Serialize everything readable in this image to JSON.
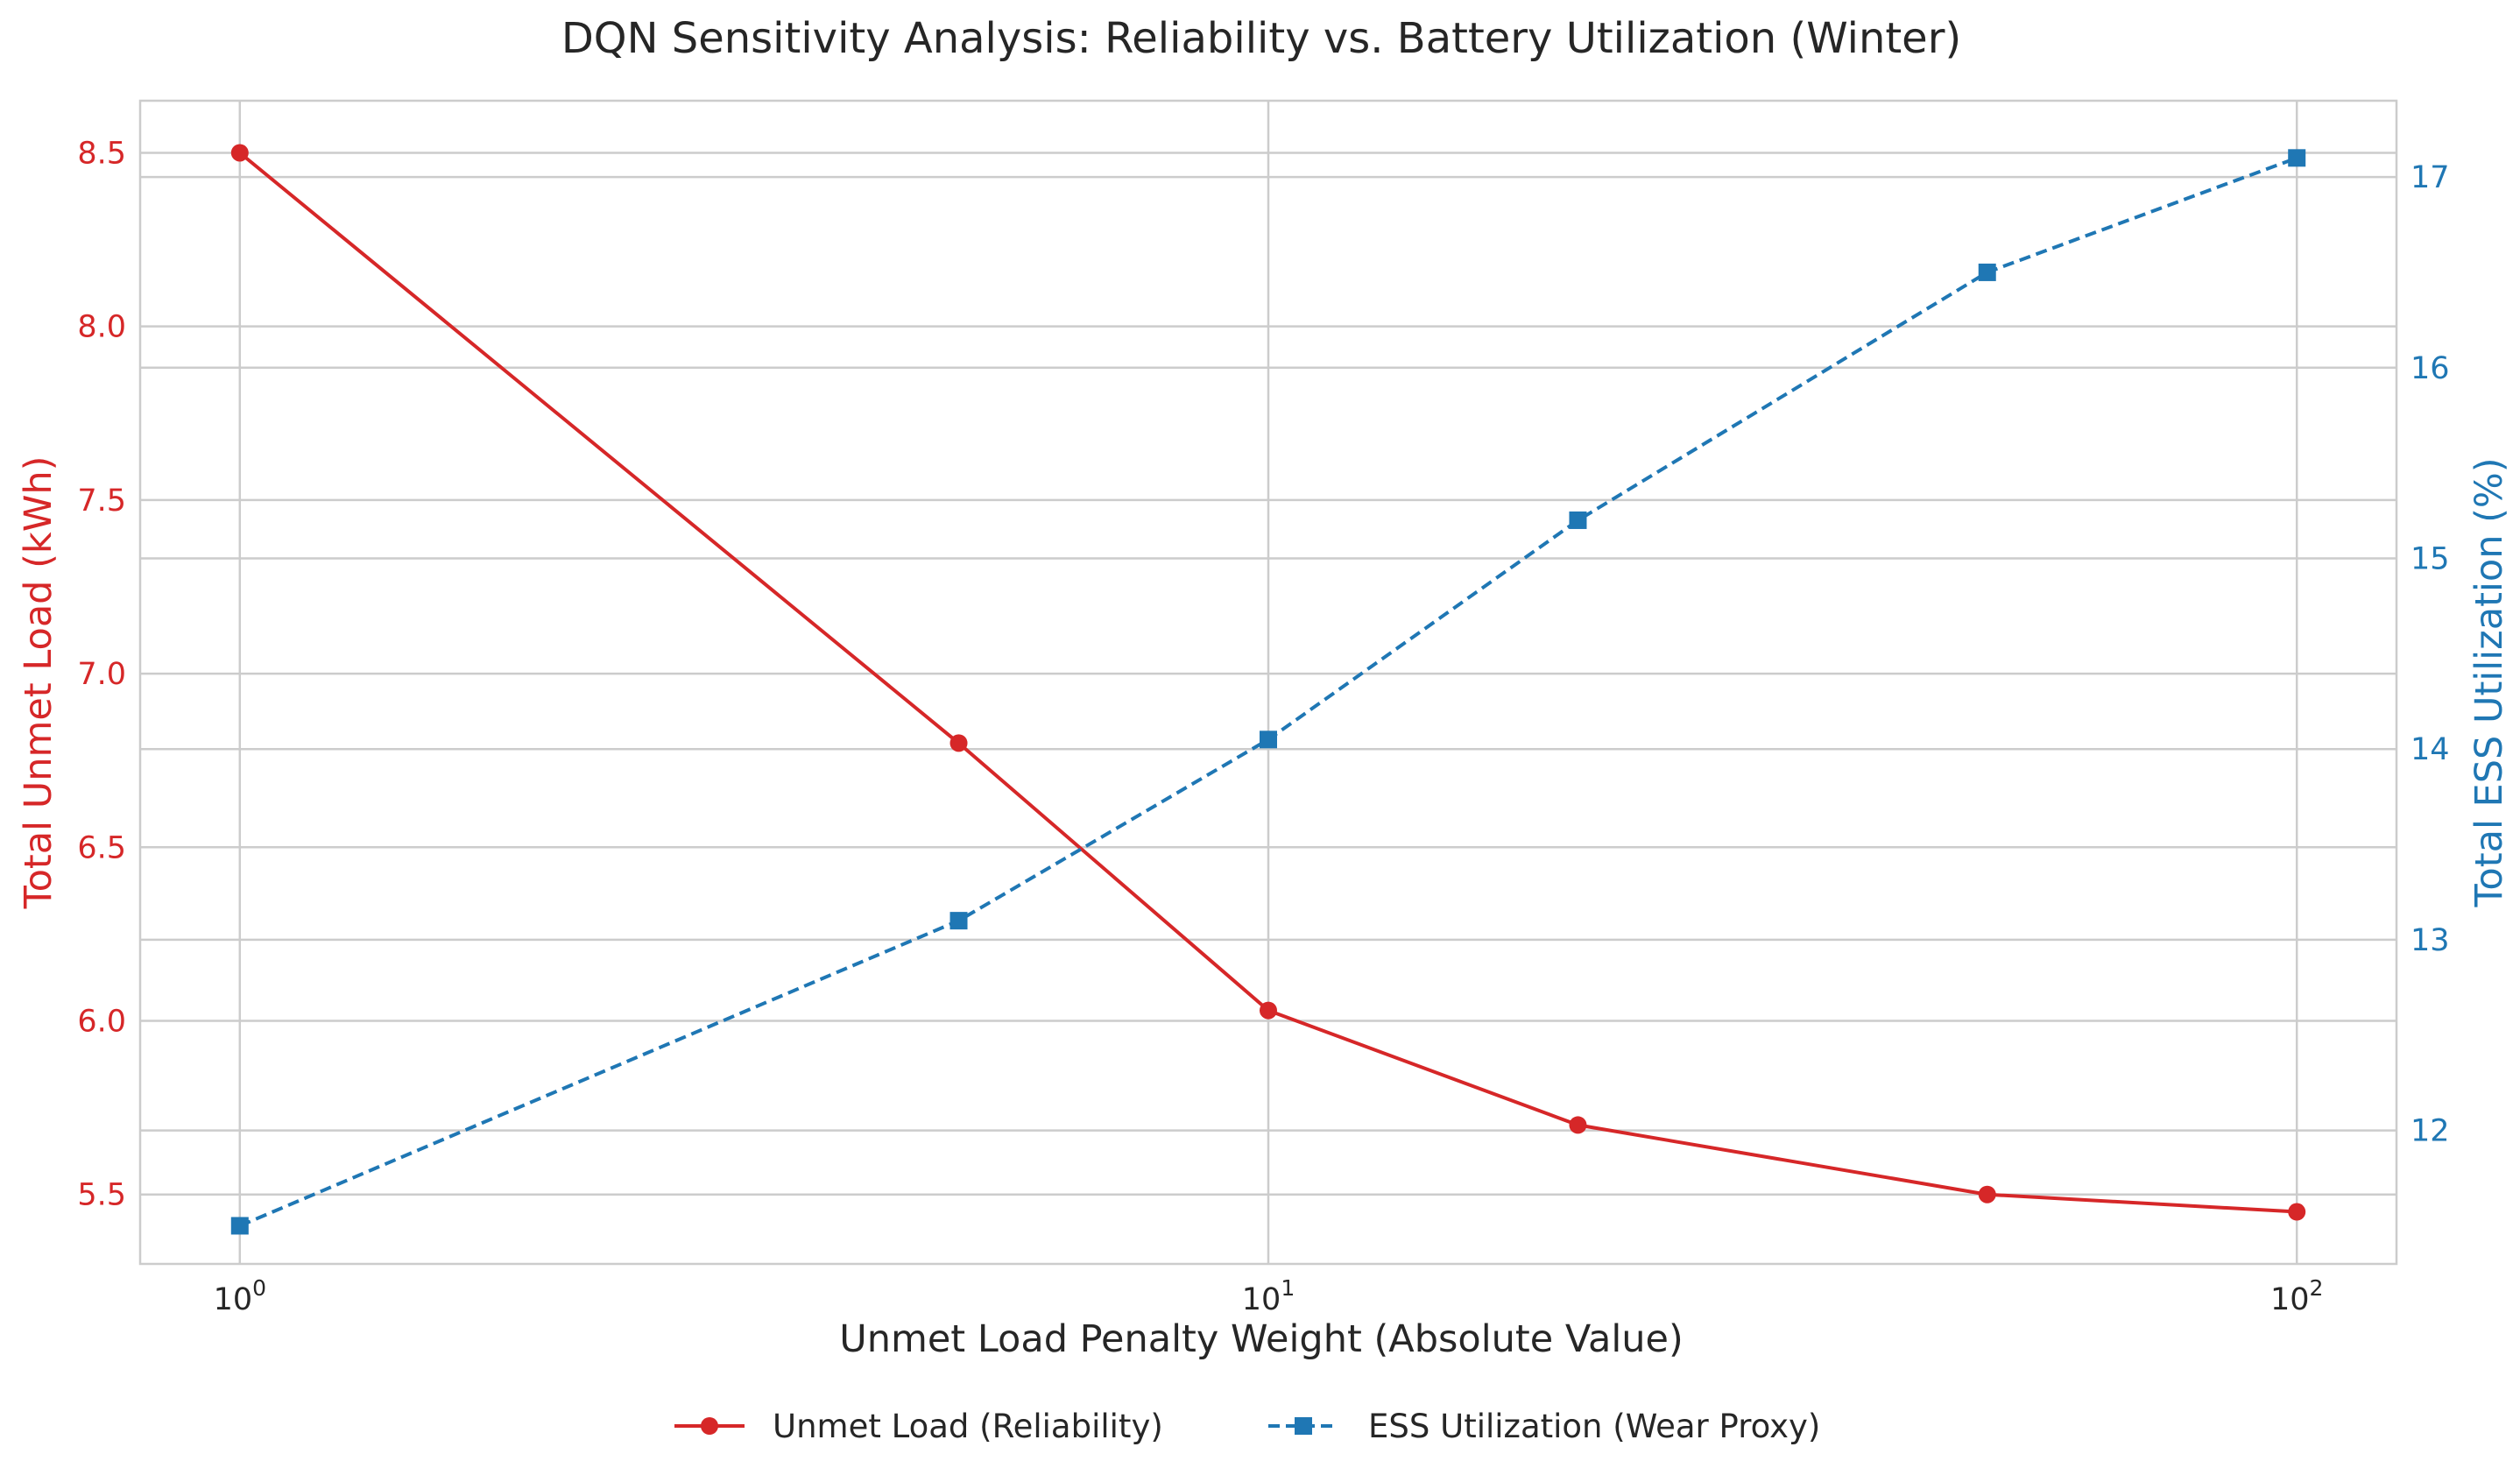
{
  "chart_data": {
    "type": "line",
    "title": "DQN Sensitivity Analysis: Reliability vs. Battery Utilization (Winter)",
    "xlabel": "Unmet Load Penalty Weight (Absolute Value)",
    "x_scale": "log",
    "x": [
      1,
      5,
      10,
      20,
      50,
      100
    ],
    "xlim": [
      0.8,
      125
    ],
    "x_ticks": [
      {
        "value": 1,
        "base": "10",
        "exp": "0"
      },
      {
        "value": 10,
        "base": "10",
        "exp": "1"
      },
      {
        "value": 100,
        "base": "10",
        "exp": "2"
      }
    ],
    "left_axis": {
      "label": "Total Unmet Load (kWh)",
      "color": "#d62728",
      "ylim": [
        5.3,
        8.65
      ],
      "ticks": [
        "5.5",
        "6.0",
        "6.5",
        "7.0",
        "7.5",
        "8.0",
        "8.5"
      ]
    },
    "right_axis": {
      "label": "Total ESS Utilization (%)",
      "color": "#1f77b4",
      "ylim": [
        11.3,
        17.4
      ],
      "ticks": [
        "12",
        "13",
        "14",
        "15",
        "16",
        "17"
      ]
    },
    "series": [
      {
        "name": "Unmet Load (Reliability)",
        "axis": "left",
        "color": "#d62728",
        "marker": "circle",
        "line_style": "solid",
        "values": [
          8.5,
          6.8,
          6.03,
          5.7,
          5.5,
          5.45
        ]
      },
      {
        "name": "ESS Utilization (Wear Proxy)",
        "axis": "right",
        "color": "#1f77b4",
        "marker": "square",
        "line_style": "dashed",
        "values": [
          11.5,
          13.1,
          14.05,
          15.2,
          16.5,
          17.1
        ]
      }
    ],
    "grid": true,
    "legend_position": "bottom-center"
  }
}
